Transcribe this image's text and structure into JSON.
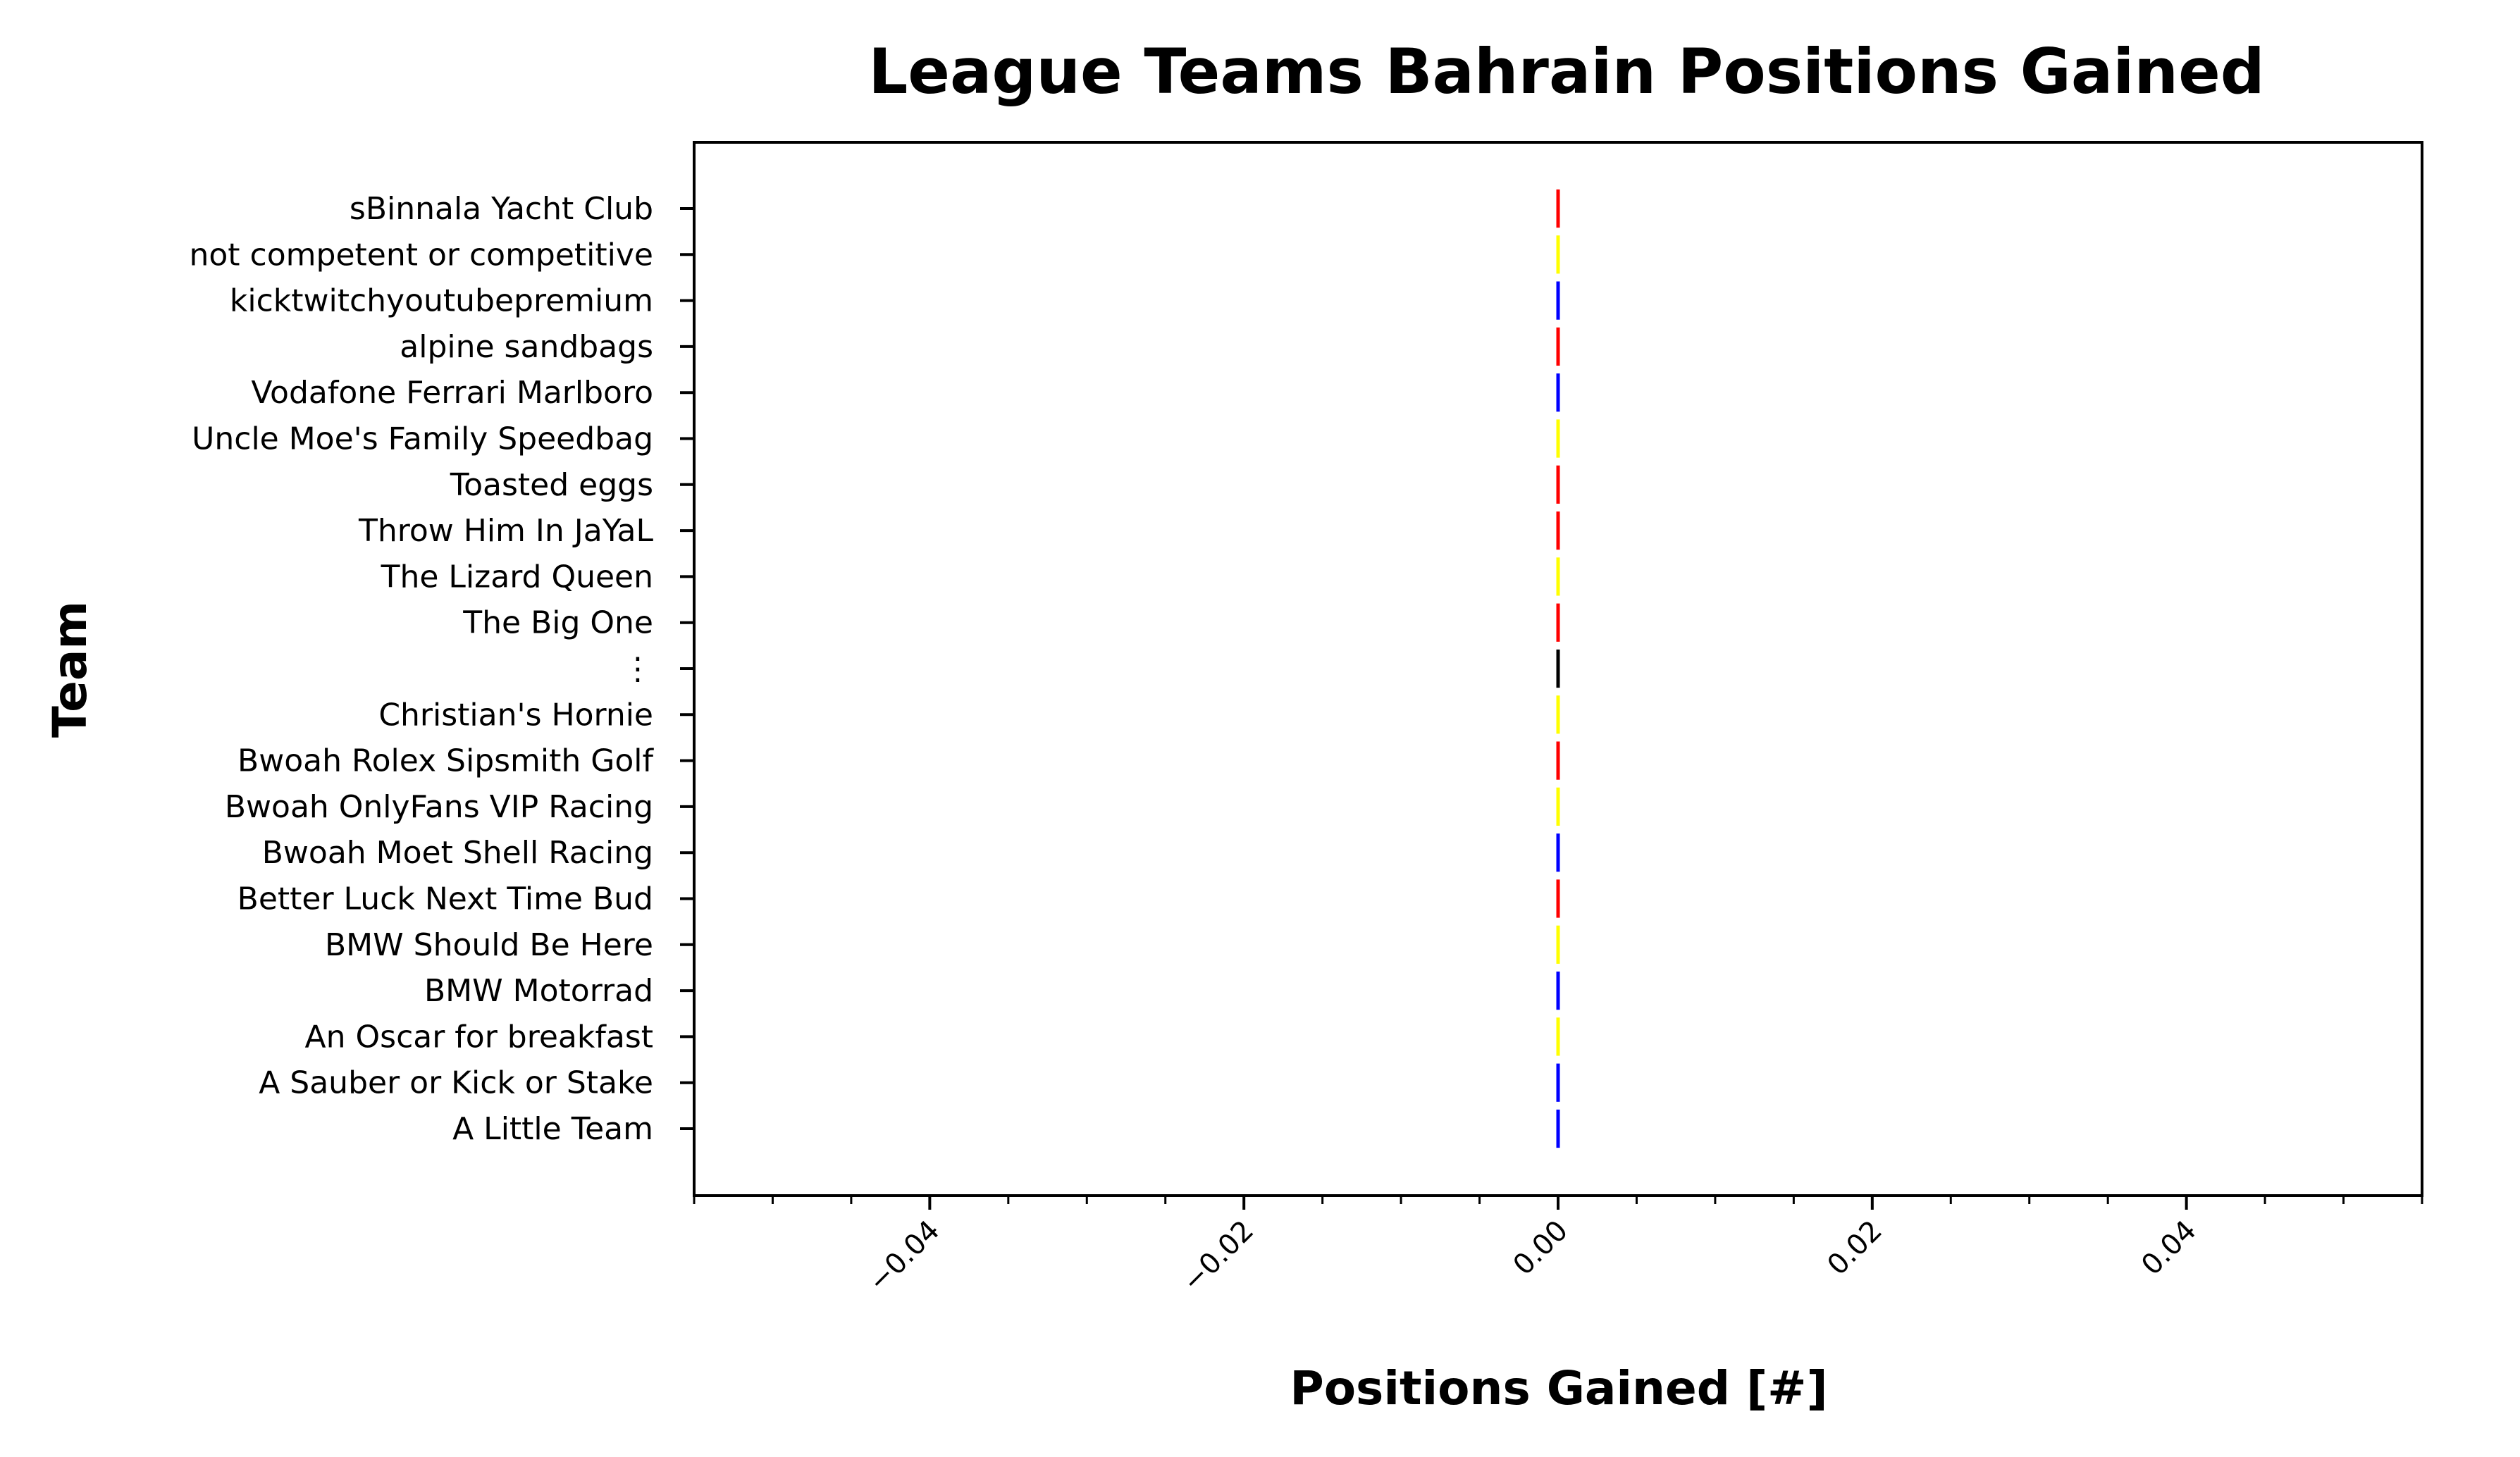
{
  "chart_data": {
    "type": "bar",
    "orientation": "horizontal",
    "title": "League Teams Bahrain Positions Gained",
    "xlabel": "Positions Gained [#]",
    "ylabel": "Team",
    "xlim": [
      -0.055,
      0.055
    ],
    "xticks": [
      -0.04,
      -0.02,
      0.0,
      0.02,
      0.04
    ],
    "xtick_labels": [
      "−0.04",
      "−0.02",
      "0.00",
      "0.02",
      "0.04"
    ],
    "xminor_step": 0.005,
    "grid": false,
    "legend": "none",
    "categories": [
      "A Little Team",
      "A Sauber or Kick or Stake",
      "An Oscar for breakfast",
      "BMW Motorrad",
      "BMW Should Be Here",
      "Better Luck Next Time Bud",
      "Bwoah Moet Shell Racing",
      "Bwoah OnlyFans VIP Racing",
      "Bwoah Rolex Sipsmith Golf",
      "Christian's Hornie",
      "⋮",
      "The Big One",
      "The Lizard Queen",
      "Throw Him In JaYaL",
      "Toasted eggs",
      "Uncle Moe's Family Speedbag",
      "Vodafone Ferrari Marlboro",
      "alpine sandbags",
      "kicktwitchyoutubepremium",
      "not competent or competitive",
      "sBinnala Yacht Club"
    ],
    "values": [
      0,
      0,
      0,
      0,
      0,
      0,
      0,
      0,
      0,
      0,
      0,
      0,
      0,
      0,
      0,
      0,
      0,
      0,
      0,
      0,
      0
    ],
    "colors": [
      "#0000ff",
      "#0000ff",
      "#ffff00",
      "#0000ff",
      "#ffff00",
      "#ff0000",
      "#0000ff",
      "#ffff00",
      "#ff0000",
      "#ffff00",
      "#000000",
      "#ff0000",
      "#ffff00",
      "#ff0000",
      "#ff0000",
      "#ffff00",
      "#0000ff",
      "#ff0000",
      "#0000ff",
      "#ffff00",
      "#ff0000"
    ]
  }
}
